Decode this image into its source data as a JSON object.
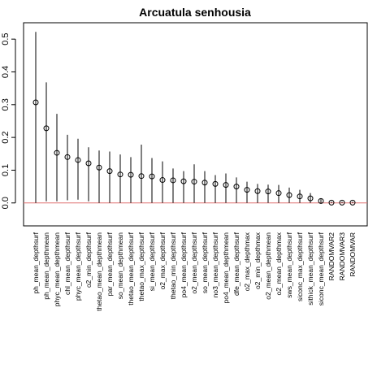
{
  "chart_data": {
    "type": "scatter",
    "title": "Arcuatula senhousia",
    "xlabel": "",
    "ylabel": "",
    "ylim": [
      -0.07,
      0.55
    ],
    "yticks": [
      0.0,
      0.1,
      0.2,
      0.3,
      0.4,
      0.5
    ],
    "ytick_labels": [
      "0.0",
      "0.1",
      "0.2",
      "0.3",
      "0.4",
      "0.5"
    ],
    "grid": false,
    "reference_line": {
      "y": 0.0,
      "color": "#e07070"
    },
    "categories": [
      "ph_mean_depthsurf",
      "ph_mean_depthmean",
      "phyc_mean_depthmean",
      "chl_mean_depthsurf",
      "phyc_mean_depthsurf",
      "o2_min_depthsurf",
      "thetao_mean_depthmean",
      "par_mean_depthsurf",
      "so_mean_depthmean",
      "thetao_mean_depthsurf",
      "thetao_max_depthsurf",
      "si_mean_depthsurf",
      "o2_max_depthsurf",
      "thetao_min_depthsurf",
      "po4_mean_depthsurf",
      "o2_mean_depthsurf",
      "so_mean_depthsurf",
      "no3_mean_depthsurf",
      "po4_mean_depthmean",
      "dfe_mean_depthsurf",
      "o2_max_depthmax",
      "o2_min_depthmax",
      "o2_mean_depthmean",
      "o2_mean_depthmax",
      "sws_mean_depthsurf",
      "siconc_max_depthsurf",
      "sithick_mean_depthsurf",
      "siconc_mean_depthsurf",
      "RANDOMVAR2",
      "RANDOMVAR3",
      "RANDOMVAR"
    ],
    "series": [
      {
        "values": [
          0.307,
          0.228,
          0.153,
          0.14,
          0.131,
          0.121,
          0.108,
          0.097,
          0.087,
          0.086,
          0.082,
          0.081,
          0.07,
          0.069,
          0.066,
          0.065,
          0.062,
          0.058,
          0.055,
          0.05,
          0.04,
          0.036,
          0.035,
          0.03,
          0.024,
          0.02,
          0.014,
          0.006,
          0.001,
          0.001,
          0.001
        ],
        "lower": [
          0.0,
          0.005,
          0.005,
          0.008,
          0.01,
          0.005,
          0.0,
          0.0,
          0.0,
          0.0,
          0.0,
          0.0,
          0.0,
          0.0,
          0.0,
          0.0,
          0.0,
          0.0,
          0.0,
          0.0,
          0.0,
          0.0,
          0.0,
          0.0,
          0.0,
          0.0,
          0.0,
          0.0,
          0.0,
          0.0,
          0.0
        ],
        "upper": [
          0.522,
          0.368,
          0.272,
          0.208,
          0.196,
          0.17,
          0.16,
          0.157,
          0.148,
          0.14,
          0.178,
          0.137,
          0.127,
          0.105,
          0.097,
          0.118,
          0.097,
          0.085,
          0.09,
          0.078,
          0.065,
          0.058,
          0.056,
          0.055,
          0.047,
          0.04,
          0.03,
          0.012,
          0.004,
          0.004,
          0.004
        ]
      }
    ]
  }
}
